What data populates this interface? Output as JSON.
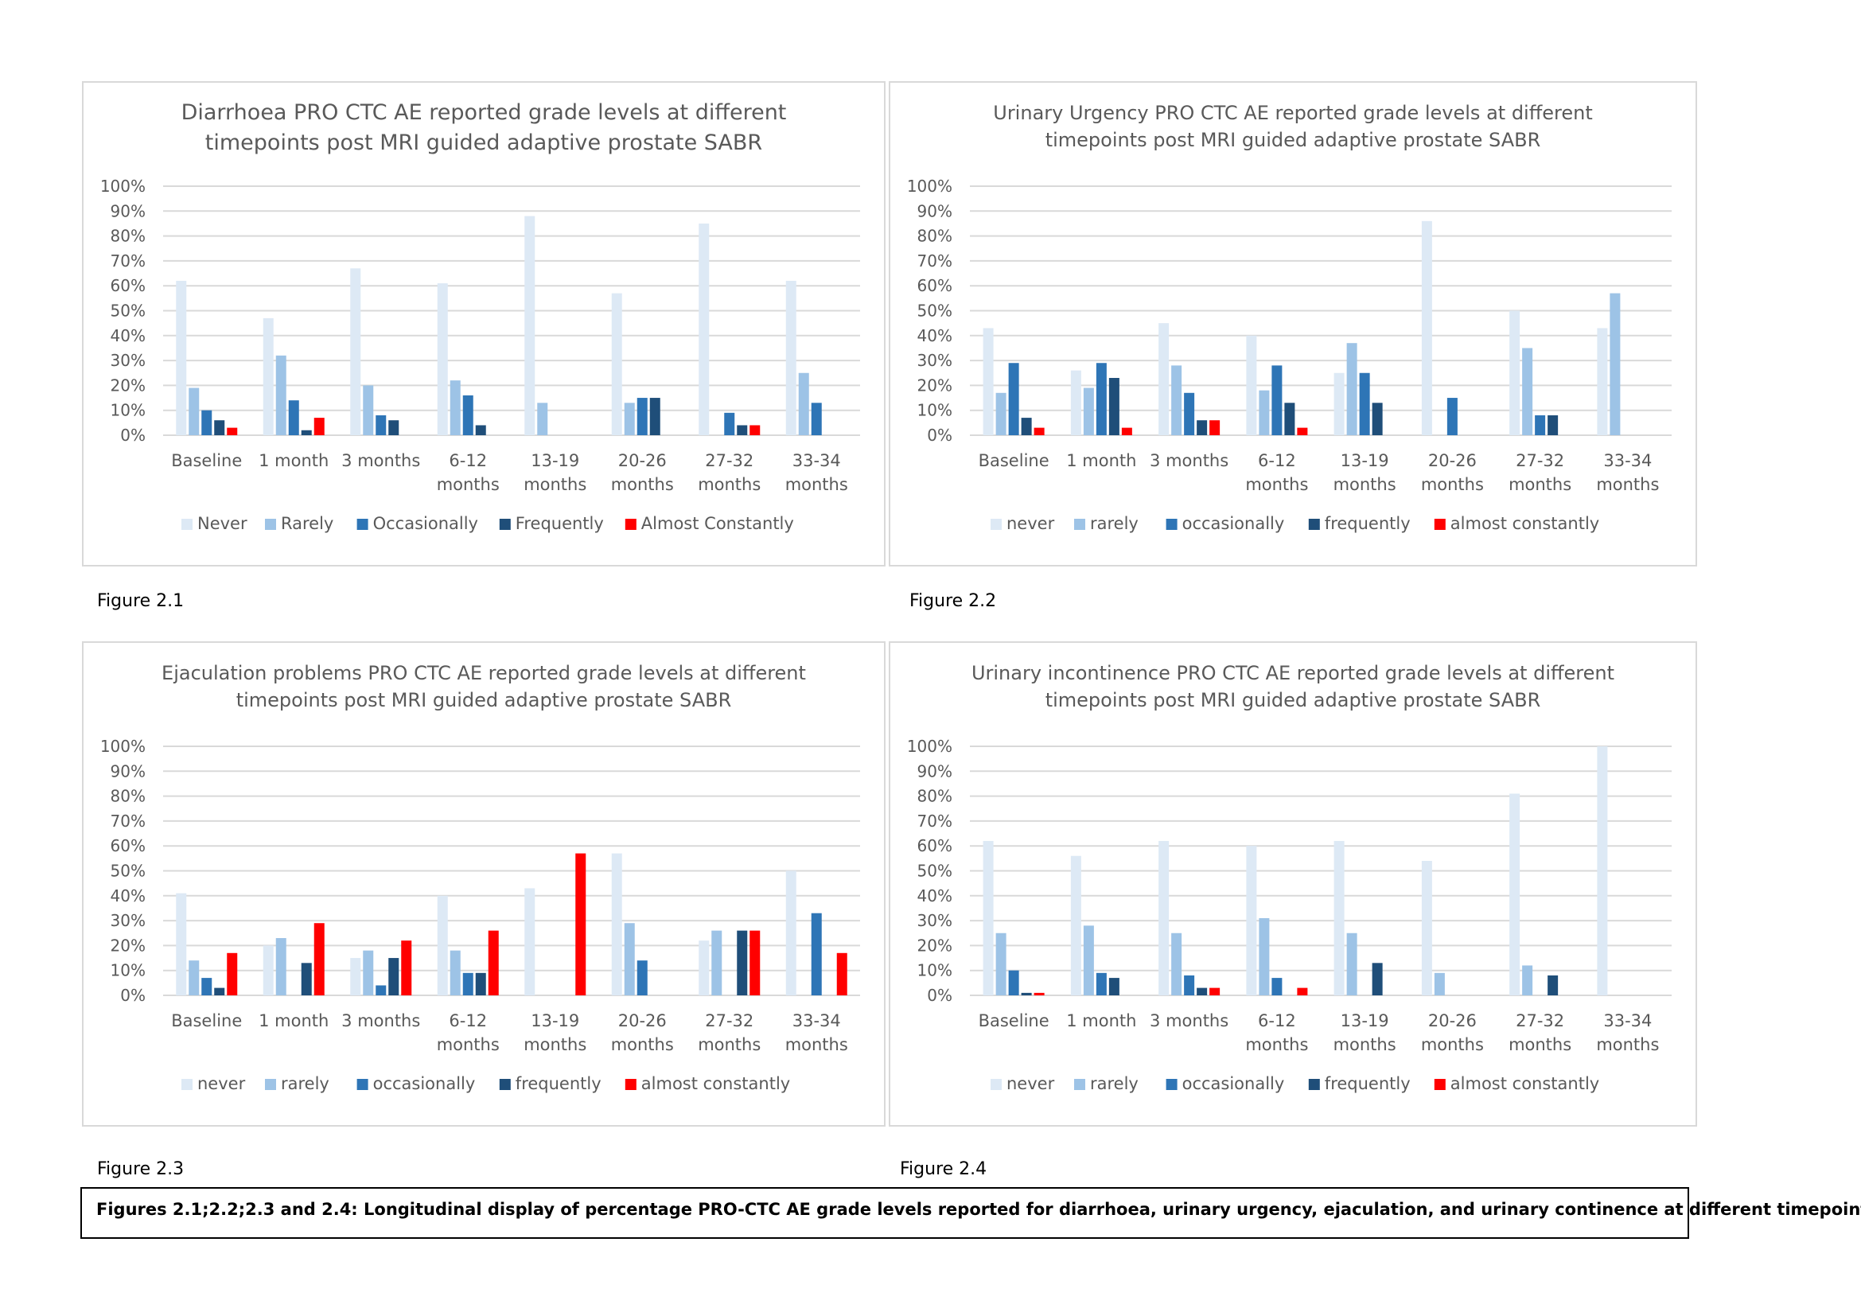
{
  "colors": {
    "never": "#dde9f5",
    "rarely": "#9dc3e6",
    "occasionally": "#2e75b6",
    "frequently": "#1f4e79",
    "almost_constantly": "#ff0000",
    "grid": "#d9d9d9",
    "text": "#595959"
  },
  "chart_data": [
    {
      "type": "bar",
      "title": [
        "Diarrhoea PRO CTC AE reported grade levels at different",
        "timepoints post MRI guided adaptive prostate SABR"
      ],
      "categories": [
        [
          "Baseline"
        ],
        [
          "1 month"
        ],
        [
          "3 months"
        ],
        [
          "6-12",
          "months"
        ],
        [
          "13-19",
          "months"
        ],
        [
          "20-26",
          "months"
        ],
        [
          "27-32",
          "months"
        ],
        [
          "33-34",
          "months"
        ]
      ],
      "y_ticks": [
        "0%",
        "10%",
        "20%",
        "30%",
        "40%",
        "50%",
        "60%",
        "70%",
        "80%",
        "90%",
        "100%"
      ],
      "ylim": [
        0,
        100
      ],
      "grid": true,
      "legend_position": "bottom",
      "series": [
        {
          "name": "Never",
          "color_key": "never",
          "values": [
            62,
            47,
            67,
            61,
            88,
            57,
            85,
            62
          ]
        },
        {
          "name": "Rarely",
          "color_key": "rarely",
          "values": [
            19,
            32,
            20,
            22,
            13,
            13,
            0,
            25
          ]
        },
        {
          "name": "Occasionally",
          "color_key": "occasionally",
          "values": [
            10,
            14,
            8,
            16,
            0,
            15,
            9,
            13
          ]
        },
        {
          "name": "Frequently",
          "color_key": "frequently",
          "values": [
            6,
            2,
            6,
            4,
            0,
            15,
            4,
            0
          ]
        },
        {
          "name": "Almost Constantly",
          "color_key": "almost_constantly",
          "values": [
            3,
            7,
            0,
            0,
            0,
            0,
            4,
            0
          ]
        }
      ]
    },
    {
      "type": "bar",
      "title": [
        "Urinary Urgency PRO CTC AE reported grade levels at different",
        "timepoints post MRI guided adaptive prostate SABR"
      ],
      "categories": [
        [
          "Baseline"
        ],
        [
          "1 month"
        ],
        [
          "3 months"
        ],
        [
          "6-12",
          "months"
        ],
        [
          "13-19",
          "months"
        ],
        [
          "20-26",
          "months"
        ],
        [
          "27-32",
          "months"
        ],
        [
          "33-34",
          "months"
        ]
      ],
      "y_ticks": [
        "0%",
        "10%",
        "20%",
        "30%",
        "40%",
        "50%",
        "60%",
        "70%",
        "80%",
        "90%",
        "100%"
      ],
      "ylim": [
        0,
        100
      ],
      "grid": true,
      "legend_position": "bottom",
      "series": [
        {
          "name": "never",
          "color_key": "never",
          "values": [
            43,
            26,
            45,
            40,
            25,
            86,
            50,
            43
          ]
        },
        {
          "name": "rarely",
          "color_key": "rarely",
          "values": [
            17,
            19,
            28,
            18,
            37,
            0,
            35,
            57
          ]
        },
        {
          "name": "occasionally",
          "color_key": "occasionally",
          "values": [
            29,
            29,
            17,
            28,
            25,
            15,
            8,
            0
          ]
        },
        {
          "name": "frequently",
          "color_key": "frequently",
          "values": [
            7,
            23,
            6,
            13,
            13,
            0,
            8,
            0
          ]
        },
        {
          "name": "almost constantly",
          "color_key": "almost_constantly",
          "values": [
            3,
            3,
            6,
            3,
            0,
            0,
            0,
            0
          ]
        }
      ]
    },
    {
      "type": "bar",
      "title": [
        "Ejaculation problems PRO CTC AE reported grade levels at different",
        "timepoints post MRI guided adaptive prostate SABR"
      ],
      "categories": [
        [
          "Baseline"
        ],
        [
          "1 month"
        ],
        [
          "3 months"
        ],
        [
          "6-12",
          "months"
        ],
        [
          "13-19",
          "months"
        ],
        [
          "20-26",
          "months"
        ],
        [
          "27-32",
          "months"
        ],
        [
          "33-34",
          "months"
        ]
      ],
      "y_ticks": [
        "0%",
        "10%",
        "20%",
        "30%",
        "40%",
        "50%",
        "60%",
        "70%",
        "80%",
        "90%",
        "100%"
      ],
      "ylim": [
        0,
        100
      ],
      "grid": true,
      "legend_position": "bottom",
      "series": [
        {
          "name": "never",
          "color_key": "never",
          "values": [
            41,
            20,
            15,
            40,
            43,
            57,
            22,
            50
          ]
        },
        {
          "name": "rarely",
          "color_key": "rarely",
          "values": [
            14,
            23,
            18,
            18,
            0,
            29,
            26,
            0
          ]
        },
        {
          "name": "occasionally",
          "color_key": "occasionally",
          "values": [
            7,
            0,
            4,
            9,
            0,
            14,
            0,
            33
          ]
        },
        {
          "name": "frequently",
          "color_key": "frequently",
          "values": [
            3,
            13,
            15,
            9,
            0,
            0,
            26,
            0
          ]
        },
        {
          "name": "almost constantly",
          "color_key": "almost_constantly",
          "values": [
            17,
            29,
            22,
            26,
            57,
            0,
            26,
            17
          ]
        }
      ]
    },
    {
      "type": "bar",
      "title": [
        "Urinary incontinence  PRO CTC AE reported grade levels at different",
        "timepoints post MRI guided adaptive prostate SABR"
      ],
      "categories": [
        [
          "Baseline"
        ],
        [
          "1 month"
        ],
        [
          "3 months"
        ],
        [
          "6-12",
          "months"
        ],
        [
          "13-19",
          "months"
        ],
        [
          "20-26",
          "months"
        ],
        [
          "27-32",
          "months"
        ],
        [
          "33-34",
          "months"
        ]
      ],
      "y_ticks": [
        "0%",
        "10%",
        "20%",
        "30%",
        "40%",
        "50%",
        "60%",
        "70%",
        "80%",
        "90%",
        "100%"
      ],
      "ylim": [
        0,
        100
      ],
      "grid": true,
      "legend_position": "bottom",
      "series": [
        {
          "name": "never",
          "color_key": "never",
          "values": [
            62,
            56,
            62,
            60,
            62,
            54,
            81,
            100
          ]
        },
        {
          "name": "rarely",
          "color_key": "rarely",
          "values": [
            25,
            28,
            25,
            31,
            25,
            9,
            12,
            0
          ]
        },
        {
          "name": "occasionally",
          "color_key": "occasionally",
          "values": [
            10,
            9,
            8,
            7,
            0,
            0,
            0,
            0
          ]
        },
        {
          "name": "frequently",
          "color_key": "frequently",
          "values": [
            1,
            7,
            3,
            0,
            13,
            0,
            8,
            0
          ]
        },
        {
          "name": "almost constantly",
          "color_key": "almost_constantly",
          "values": [
            1,
            0,
            3,
            3,
            0,
            0,
            0,
            0
          ]
        }
      ]
    }
  ],
  "figure_labels": [
    "Figure 2.1",
    "Figure 2.2",
    "Figure 2.3",
    "Figure 2.4"
  ],
  "caption": "Figures 2.1;2.2;2.3 and 2.4: Longitudinal display of percentage PRO-CTC AE grade levels reported for diarrhoea, urinary urgency, ejaculation, and urinary continence at different timepoints."
}
